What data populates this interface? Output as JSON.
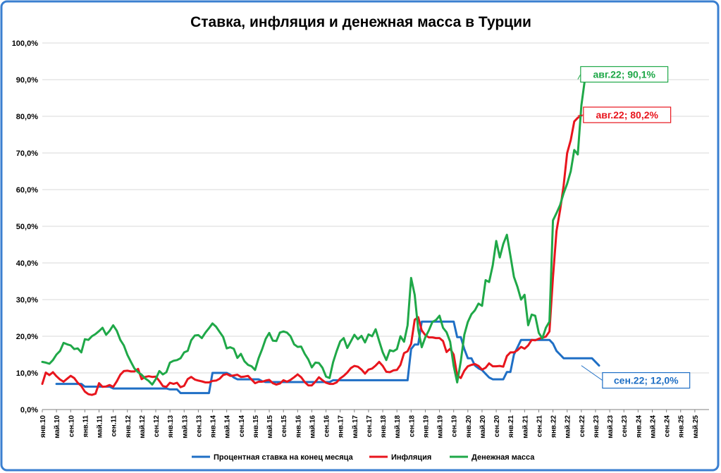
{
  "chart_data": {
    "type": "line",
    "title": "Ставка, инфляция и денежная масса в Турции",
    "xlabel": "",
    "ylabel": "",
    "ylim": [
      0,
      100
    ],
    "y_tick_labels": [
      "0,0%",
      "10,0%",
      "20,0%",
      "30,0%",
      "40,0%",
      "50,0%",
      "60,0%",
      "70,0%",
      "80,0%",
      "90,0%",
      "100,0%"
    ],
    "x_start": "янв.10",
    "x_tick_labels": [
      "янв.10",
      "май.10",
      "сен.10",
      "янв.11",
      "май.11",
      "сен.11",
      "янв.12",
      "май.12",
      "сен.12",
      "янв.13",
      "май.13",
      "сен.13",
      "янв.14",
      "май.14",
      "сен.14",
      "янв.15",
      "май.15",
      "сен.15",
      "янв.16",
      "май.16",
      "сен.16",
      "янв.17",
      "май.17",
      "сен.17",
      "янв.18",
      "май.18",
      "сен.18",
      "янв.19",
      "май.19",
      "сен.19",
      "янв.20",
      "май.20",
      "сен.20",
      "янв.21",
      "май.21",
      "сен.21",
      "янв.22",
      "май.22",
      "сен.22",
      "янв.23",
      "май.23",
      "сен.23",
      "янв.24",
      "май.24",
      "сен.24",
      "янв.25",
      "май.25"
    ],
    "grid": true,
    "legend_position": "bottom",
    "series": [
      {
        "name": "Процентная ставка на конец месяца",
        "color": "#1f6fc5",
        "start": "май.10",
        "values": [
          7,
          7,
          7,
          7,
          7,
          7,
          7,
          7,
          6.25,
          6.25,
          6.25,
          6.25,
          6.25,
          6.25,
          6.25,
          6.25,
          5.75,
          5.75,
          5.75,
          5.75,
          5.75,
          5.75,
          5.75,
          5.75,
          5.75,
          5.75,
          5.75,
          5.75,
          5.75,
          5.75,
          5.75,
          5.75,
          5.5,
          5.5,
          5.5,
          4.5,
          4.5,
          4.5,
          4.5,
          4.5,
          4.5,
          4.5,
          4.5,
          4.5,
          10,
          10,
          10,
          10,
          10,
          9.5,
          8.75,
          8.25,
          8.25,
          8.25,
          8.25,
          8.25,
          8.25,
          8.25,
          7.75,
          7.5,
          7.5,
          7.5,
          7.5,
          7.5,
          7.5,
          7.5,
          7.5,
          7.5,
          7.5,
          7.5,
          7.5,
          7.5,
          7.5,
          7.5,
          7.5,
          7.5,
          7.5,
          7.5,
          8,
          8,
          8,
          8,
          8,
          8,
          8,
          8,
          8,
          8,
          8,
          8,
          8,
          8,
          8,
          8,
          8,
          8,
          8,
          8,
          8,
          8,
          16.5,
          17.75,
          17.75,
          24,
          24,
          24,
          24,
          24,
          24,
          24,
          24,
          24,
          24,
          19.75,
          19.75,
          16.5,
          14,
          14,
          12,
          11.25,
          10.75,
          9.75,
          8.75,
          8.25,
          8.25,
          8.25,
          8.25,
          10.25,
          10.25,
          15,
          17,
          19,
          19,
          19,
          19,
          19,
          19,
          19,
          19,
          19,
          18,
          16,
          15,
          14,
          14,
          14,
          14,
          14,
          14,
          14,
          14,
          14,
          13,
          12
        ]
      },
      {
        "name": "Инфляция",
        "color": "#e8151d",
        "start": "янв.10",
        "values": [
          7,
          10.1,
          9.4,
          10.2,
          9.1,
          8.2,
          7.6,
          8.4,
          9.2,
          8.6,
          7.3,
          6.4,
          4.9,
          4.2,
          4,
          4.3,
          7.2,
          6.2,
          6.3,
          6.7,
          6.2,
          7.7,
          9.5,
          10.5,
          10.6,
          10.4,
          10.4,
          11.1,
          8.3,
          8.9,
          9.1,
          8.9,
          9,
          7.8,
          6.4,
          6.2,
          7.3,
          7,
          7.3,
          6.1,
          6.5,
          8.3,
          8.9,
          8.2,
          7.9,
          7.7,
          7.4,
          7.4,
          7.8,
          7.9,
          8.4,
          9.4,
          9.7,
          9.2,
          9.3,
          9.5,
          8.9,
          9,
          9.2,
          8.2,
          7.2,
          7.6,
          7.6,
          7.9,
          8.1,
          7.2,
          6.8,
          7.1,
          8,
          7.6,
          8.1,
          8.8,
          9.6,
          8.8,
          7.5,
          6.6,
          6.6,
          7.6,
          8.8,
          8,
          7.3,
          7,
          7,
          7.4,
          8.5,
          9.2,
          10.1,
          11.3,
          11.9,
          11.7,
          10.9,
          9.8,
          10.9,
          11.2,
          12,
          13,
          11.9,
          10.3,
          10.2,
          10.7,
          10.8,
          12.2,
          15.4,
          15.9,
          17.9,
          24.5,
          25.2,
          21.6,
          20.3,
          19.7,
          19.7,
          19.5,
          19.5,
          18.7,
          15.7,
          16.6,
          15,
          9.3,
          8.6,
          10.6,
          11.8,
          12.2,
          12.4,
          11.9,
          10.9,
          11.4,
          12.6,
          11.8,
          11.8,
          11.9,
          11.7,
          14.6,
          15.6,
          15.6,
          16.2,
          17.1,
          16.6,
          17.5,
          19,
          18.9,
          19.3,
          19.6,
          19.9,
          21.3,
          36.1,
          48.7,
          54.4,
          61.1,
          69.97,
          73.5,
          78.6,
          79.6,
          80.2
        ]
      },
      {
        "name": "Денежная масса",
        "color": "#1fa848",
        "start": "янв.10",
        "values": [
          13,
          12.8,
          12.5,
          13.5,
          15,
          16,
          18.2,
          17.8,
          17.5,
          16.5,
          16.7,
          15.6,
          19.2,
          19,
          20,
          20.6,
          21.4,
          22.3,
          20.4,
          21.5,
          23,
          21.5,
          19,
          17.5,
          14.9,
          13,
          11.2,
          10.2,
          9.5,
          8.5,
          7.8,
          6.8,
          8.3,
          10.5,
          9.6,
          10.2,
          12.8,
          13.3,
          13.5,
          14,
          15.6,
          16,
          18.9,
          20.2,
          20.3,
          19.5,
          21,
          22.2,
          23.5,
          22.6,
          21.2,
          19.8,
          16.7,
          17,
          16.6,
          14.1,
          15.2,
          13.2,
          12.2,
          11.8,
          10.8,
          14,
          16.5,
          19.3,
          20.9,
          18.8,
          18.7,
          21,
          21.3,
          21,
          20,
          17.8,
          17.1,
          17.2,
          15.2,
          13.7,
          11.5,
          12.8,
          12.7,
          11.4,
          9,
          8.6,
          12.9,
          15.9,
          18.6,
          19.5,
          16.8,
          18.6,
          20.4,
          19.2,
          20.1,
          18.3,
          20.5,
          20,
          21.9,
          18.7,
          15.6,
          13.5,
          16.2,
          15.9,
          16.5,
          20,
          18.5,
          23,
          35.9,
          31.3,
          21.8,
          17,
          19.7,
          21.6,
          23.9,
          24.4,
          25.6,
          22.3,
          21.1,
          18.5,
          11.9,
          7.4,
          13.2,
          20.4,
          23.9,
          26,
          27.1,
          28.9,
          28.3,
          35.3,
          34.8,
          39.3,
          46,
          41.5,
          45.2,
          47.7,
          42,
          36.2,
          33.4,
          30,
          31.3,
          23,
          25.9,
          25.6,
          20.9,
          19.4,
          22.3,
          24,
          51.6,
          53.6,
          55.8,
          59,
          61.6,
          65,
          70.8,
          69.6,
          83,
          90.1
        ]
      }
    ],
    "annotations": [
      {
        "series": "Денежная масса",
        "label": "авг.22; 90,1%",
        "x": "авг.22",
        "y": 90.1
      },
      {
        "series": "Инфляция",
        "label": "авг.22; 80,2%",
        "x": "авг.22",
        "y": 80.2
      },
      {
        "series": "Процентная ставка на конец месяца",
        "label": "сен.22; 12,0%",
        "x": "сен.22",
        "y": 12.0
      }
    ]
  }
}
